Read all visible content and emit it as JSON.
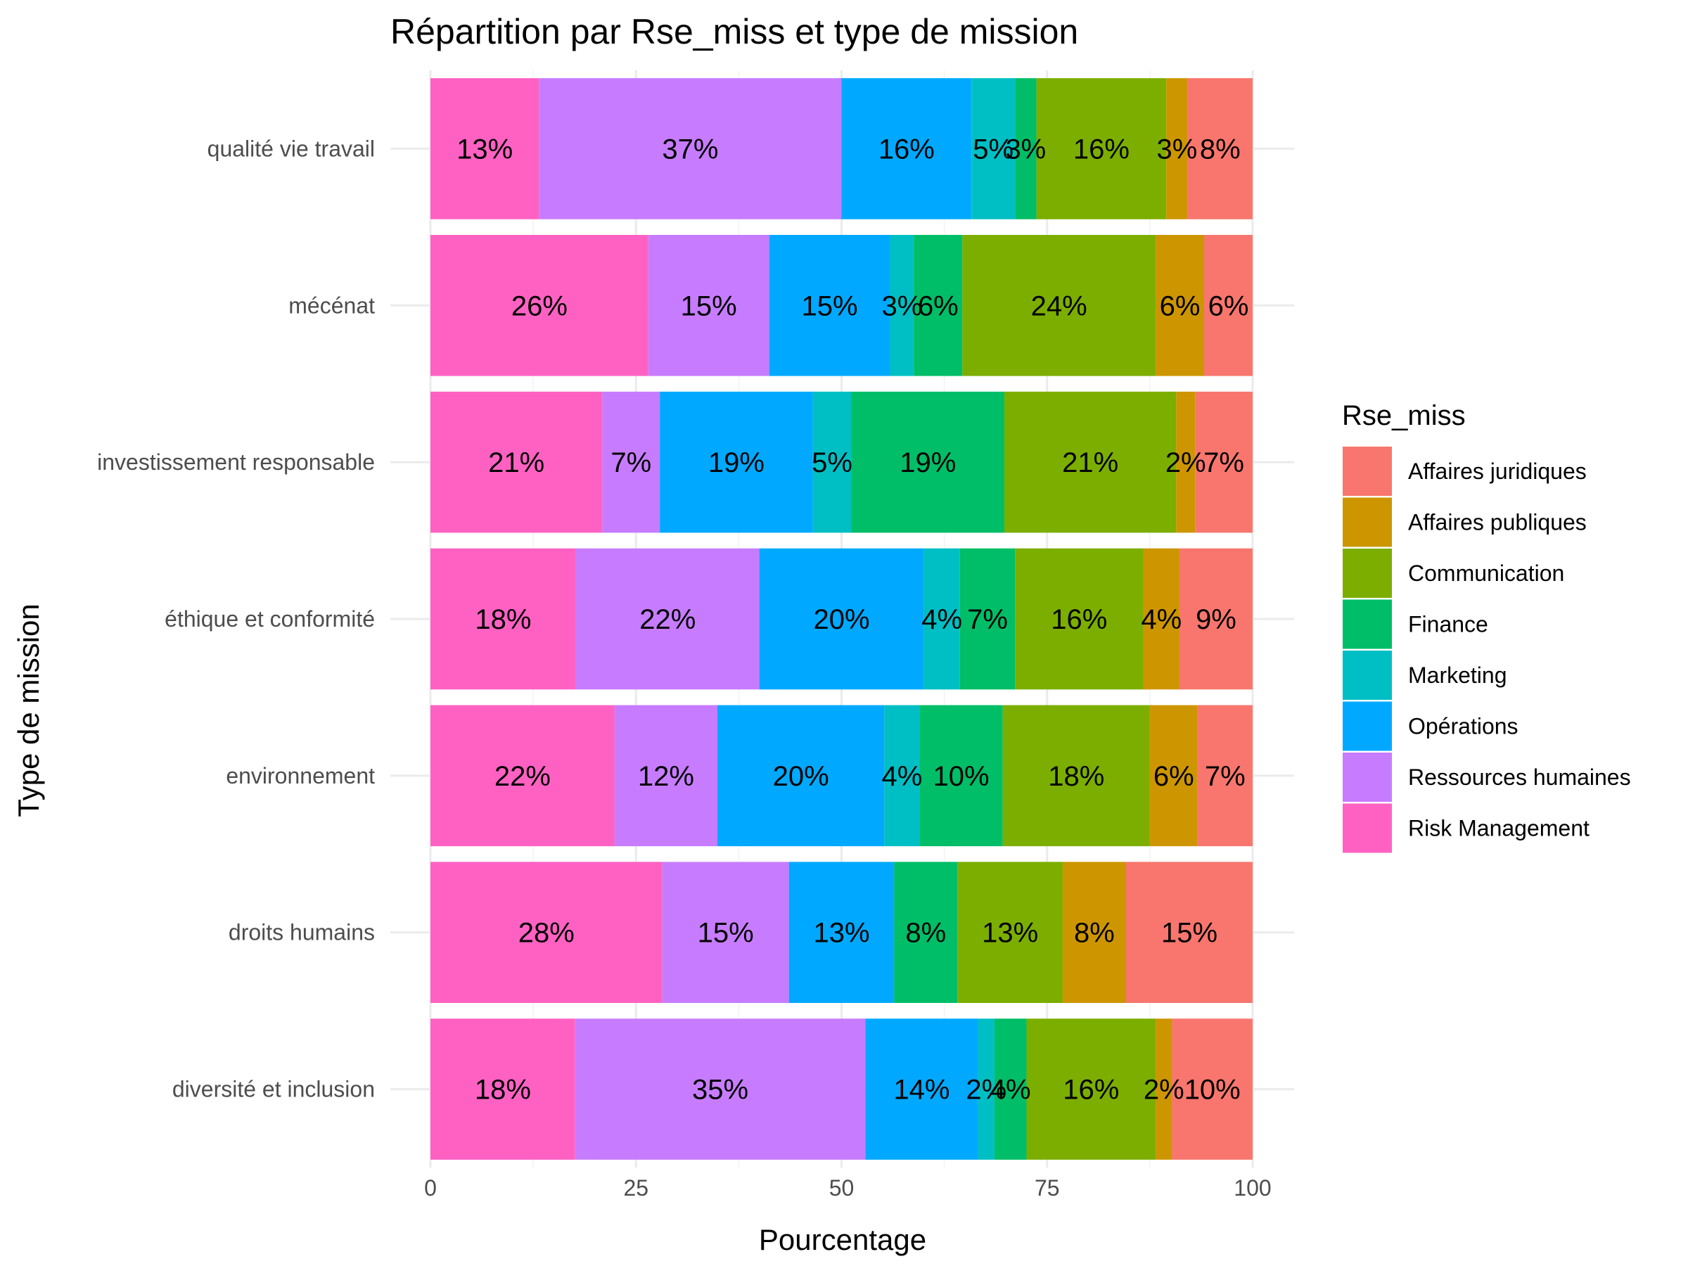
{
  "chart_data": {
    "type": "bar",
    "orientation": "horizontal",
    "stacked": true,
    "title": "Répartition par Rse_miss et type de mission",
    "xlabel": "Pourcentage",
    "ylabel": "Type de mission",
    "xlim": [
      0,
      100
    ],
    "xticks": [
      "0",
      "25",
      "50",
      "75",
      "100"
    ],
    "grid": true,
    "legend_position": "right",
    "legend_title": "Rse_miss",
    "categories": [
      "qualité vie travail",
      "mécénat",
      "investissement responsable",
      "éthique et conformité",
      "environnement",
      "droits humains",
      "diversité et inclusion"
    ],
    "stack_order": [
      "Risk Management",
      "Ressources humaines",
      "Opérations",
      "Marketing",
      "Finance",
      "Communication",
      "Affaires publiques",
      "Affaires juridiques"
    ],
    "legend_order": [
      "Affaires juridiques",
      "Affaires publiques",
      "Communication",
      "Finance",
      "Marketing",
      "Opérations",
      "Ressources humaines",
      "Risk Management"
    ],
    "series": [
      {
        "name": "Risk Management",
        "color": "#FF61C3",
        "values": [
          13.2,
          26.5,
          20.9,
          17.7,
          22.4,
          28.2,
          17.6
        ],
        "labels": [
          "13%",
          "26%",
          "21%",
          "18%",
          "22%",
          "28%",
          "18%"
        ]
      },
      {
        "name": "Ressources humaines",
        "color": "#C77CFF",
        "values": [
          36.8,
          14.7,
          7.0,
          22.3,
          12.5,
          15.4,
          35.3
        ],
        "labels": [
          "37%",
          "15%",
          "7%",
          "22%",
          "12%",
          "15%",
          "35%"
        ]
      },
      {
        "name": "Opérations",
        "color": "#00A9FF",
        "values": [
          15.8,
          14.7,
          18.6,
          20.0,
          20.3,
          12.8,
          13.7
        ],
        "labels": [
          "16%",
          "15%",
          "19%",
          "20%",
          "20%",
          "13%",
          "14%"
        ]
      },
      {
        "name": "Marketing",
        "color": "#00BFC4",
        "values": [
          5.3,
          2.9,
          4.7,
          4.4,
          4.3,
          0,
          2.0
        ],
        "labels": [
          "5%",
          "3%",
          "5%",
          "4%",
          "4%",
          "",
          "2%"
        ]
      },
      {
        "name": "Finance",
        "color": "#00BE67",
        "values": [
          2.6,
          5.9,
          18.6,
          6.7,
          10.1,
          7.7,
          3.9
        ],
        "labels": [
          "3%",
          "6%",
          "19%",
          "7%",
          "10%",
          "8%",
          "4%"
        ]
      },
      {
        "name": "Communication",
        "color": "#7CAE00",
        "values": [
          15.8,
          23.5,
          20.9,
          15.6,
          17.9,
          12.8,
          15.7
        ],
        "labels": [
          "16%",
          "24%",
          "21%",
          "16%",
          "18%",
          "13%",
          "16%"
        ]
      },
      {
        "name": "Affaires publiques",
        "color": "#CD9600",
        "values": [
          2.6,
          5.9,
          2.3,
          4.4,
          5.8,
          7.7,
          2.0
        ],
        "labels": [
          "3%",
          "6%",
          "2%",
          "4%",
          "6%",
          "8%",
          "2%"
        ]
      },
      {
        "name": "Affaires juridiques",
        "color": "#F8766D",
        "values": [
          7.9,
          5.9,
          7.0,
          8.9,
          6.7,
          15.4,
          9.8
        ],
        "labels": [
          "8%",
          "6%",
          "7%",
          "9%",
          "7%",
          "15%",
          "10%"
        ]
      }
    ]
  }
}
